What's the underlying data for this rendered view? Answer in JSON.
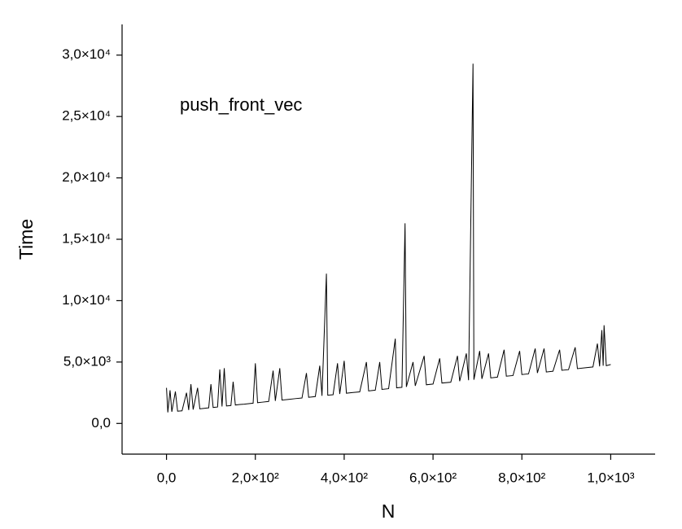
{
  "chart_data": {
    "type": "line",
    "annotation": "push_front_vec",
    "x_label": "N",
    "y_label": "Time",
    "color": "#000000",
    "xlim": [
      -100,
      1100
    ],
    "ylim": [
      -2500,
      32500
    ],
    "xticks": [
      {
        "value": 0,
        "label": "0,0"
      },
      {
        "value": 200,
        "label": "2,0×10²"
      },
      {
        "value": 400,
        "label": "4,0×10²"
      },
      {
        "value": 600,
        "label": "6,0×10²"
      },
      {
        "value": 800,
        "label": "8,0×10²"
      },
      {
        "value": 1000,
        "label": "1,0×10³"
      }
    ],
    "yticks": [
      {
        "value": 0,
        "label": "0,0"
      },
      {
        "value": 5000,
        "label": "5,0×10³"
      },
      {
        "value": 10000,
        "label": "1,0×10⁴"
      },
      {
        "value": 15000,
        "label": "1,5×10⁴"
      },
      {
        "value": 20000,
        "label": "2,0×10⁴"
      },
      {
        "value": 25000,
        "label": "2,5×10⁴"
      },
      {
        "value": 30000,
        "label": "3,0×10⁴"
      }
    ],
    "x": [
      0,
      3,
      8,
      12,
      20,
      25,
      35,
      45,
      50,
      55,
      60,
      70,
      75,
      85,
      95,
      100,
      105,
      115,
      120,
      125,
      130,
      135,
      145,
      150,
      155,
      165,
      175,
      185,
      195,
      200,
      205,
      215,
      230,
      240,
      245,
      255,
      260,
      275,
      290,
      305,
      315,
      320,
      335,
      345,
      350,
      360,
      363,
      375,
      385,
      390,
      400,
      405,
      420,
      435,
      450,
      455,
      470,
      480,
      485,
      500,
      515,
      518,
      530,
      537,
      540,
      555,
      560,
      580,
      585,
      600,
      615,
      620,
      640,
      655,
      660,
      675,
      680,
      690,
      692,
      705,
      710,
      725,
      730,
      745,
      760,
      765,
      780,
      795,
      800,
      815,
      830,
      835,
      850,
      855,
      870,
      885,
      890,
      905,
      920,
      925,
      945,
      960,
      970,
      975,
      980,
      983,
      985,
      990,
      1000
    ],
    "values": [
      2900,
      900,
      2700,
      950,
      2600,
      1000,
      1030,
      2500,
      1090,
      3200,
      1130,
      2900,
      1190,
      1230,
      1270,
      3200,
      1300,
      1340,
      4400,
      1380,
      4500,
      1420,
      1460,
      3400,
      1500,
      1540,
      1570,
      1610,
      1650,
      4900,
      1690,
      1730,
      1790,
      4300,
      1840,
      4500,
      1900,
      1960,
      2020,
      2070,
      4100,
      2130,
      2190,
      4700,
      2250,
      12200,
      2300,
      2340,
      4900,
      2400,
      5100,
      2460,
      2520,
      2570,
      5000,
      2650,
      2710,
      5000,
      2770,
      2830,
      6900,
      2900,
      2940,
      16300,
      2980,
      5000,
      3060,
      5500,
      3150,
      3210,
      5300,
      3290,
      3360,
      5500,
      3440,
      5700,
      3520,
      29300,
      3560,
      5900,
      3630,
      5700,
      3710,
      3770,
      6000,
      3850,
      3900,
      5900,
      3980,
      4040,
      6100,
      4110,
      6100,
      4190,
      4250,
      6000,
      4330,
      4380,
      6200,
      4460,
      4540,
      4600,
      6500,
      4650,
      7600,
      4700,
      8000,
      4700,
      4800
    ]
  }
}
